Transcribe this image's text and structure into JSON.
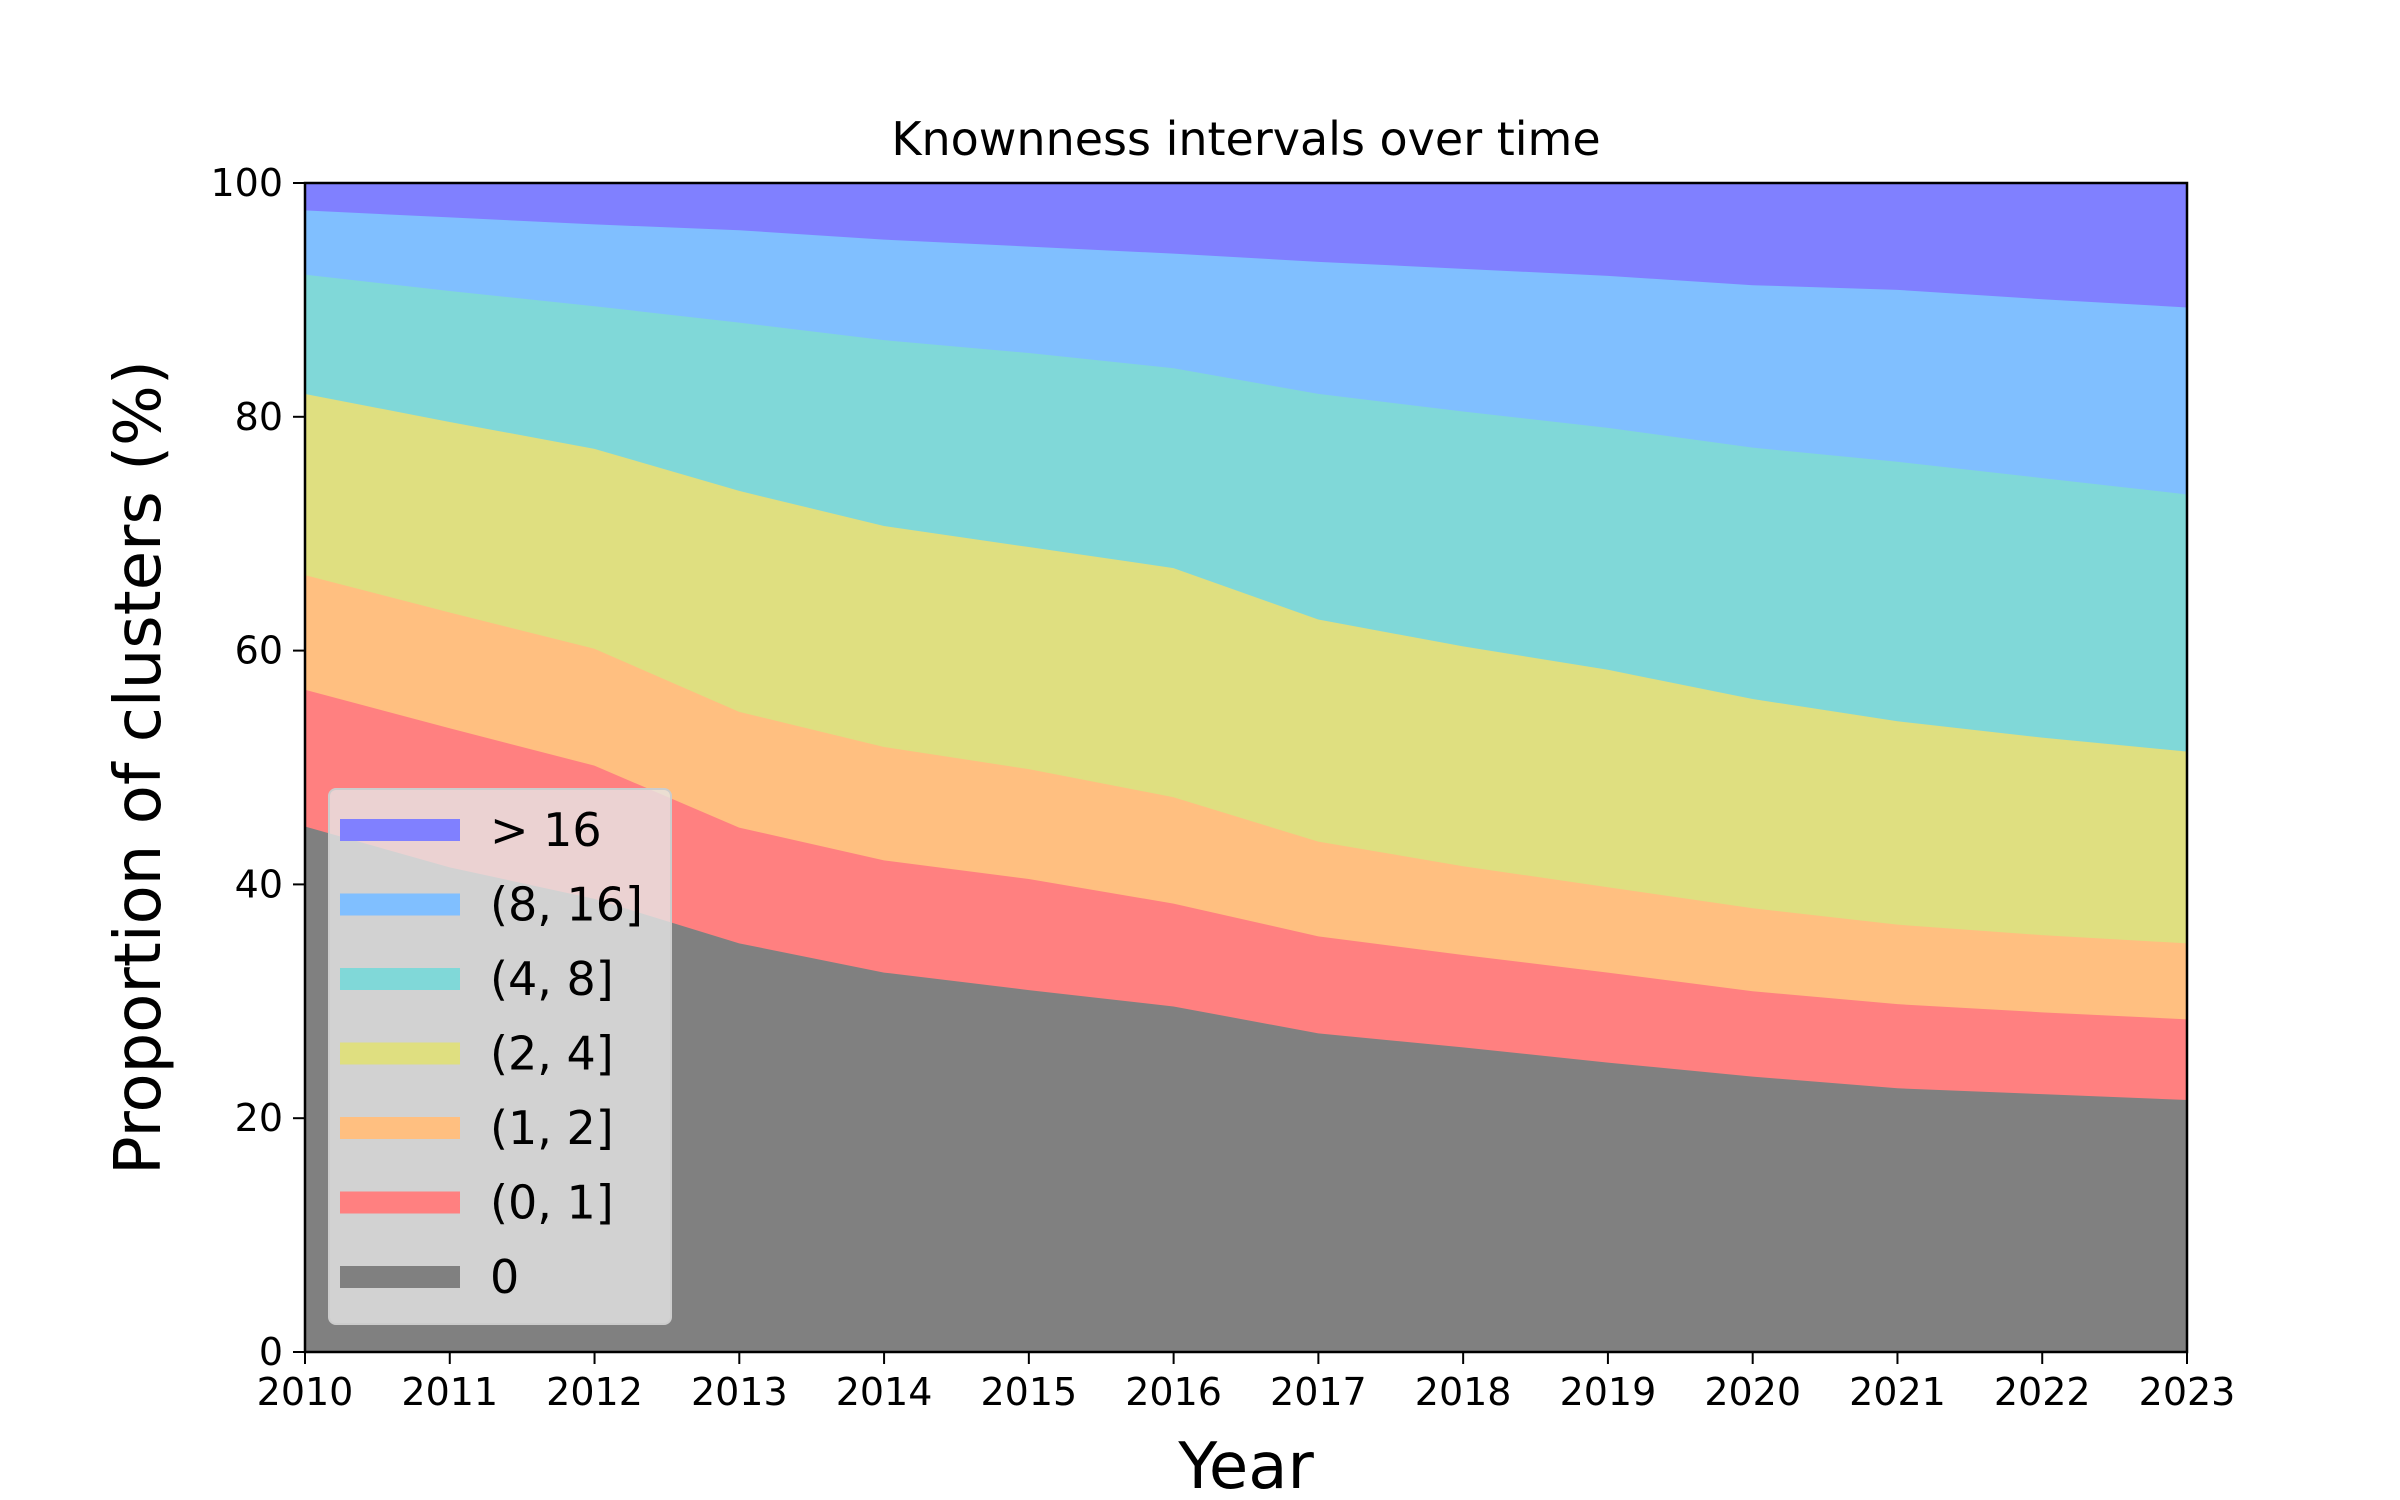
{
  "chart_data": {
    "type": "area",
    "stacked": true,
    "title": "Knownness intervals over time",
    "xlabel": "Year",
    "ylabel": "Proportion of clusters (%)",
    "x": [
      2010,
      2011,
      2012,
      2013,
      2014,
      2015,
      2016,
      2017,
      2018,
      2019,
      2020,
      2021,
      2022,
      2023
    ],
    "xlim": [
      2010,
      2023
    ],
    "ylim": [
      0,
      100
    ],
    "yticks": [
      0,
      20,
      40,
      60,
      80,
      100
    ],
    "grid": false,
    "legend_position": "lower-left",
    "series": [
      {
        "name": "0",
        "color": "#808080",
        "values": [
          45.0,
          41.5,
          38.8,
          35.0,
          32.5,
          31.0,
          29.6,
          27.3,
          26.1,
          24.8,
          23.6,
          22.6,
          22.1,
          21.6
        ]
      },
      {
        "name": "(0, 1]",
        "color": "#ff8080",
        "values": [
          11.7,
          11.9,
          11.4,
          9.9,
          9.6,
          9.5,
          8.8,
          8.3,
          7.9,
          7.7,
          7.3,
          7.2,
          7.0,
          6.9
        ]
      },
      {
        "name": "(1, 2]",
        "color": "#ffbf80",
        "values": [
          9.8,
          9.9,
          10.0,
          9.9,
          9.7,
          9.4,
          9.1,
          8.1,
          7.6,
          7.3,
          7.1,
          6.8,
          6.6,
          6.5
        ]
      },
      {
        "name": "(2, 4]",
        "color": "#dfdf80",
        "values": [
          15.5,
          16.3,
          17.1,
          18.9,
          18.9,
          19.0,
          19.6,
          19.0,
          18.8,
          18.6,
          17.9,
          17.4,
          16.9,
          16.4
        ]
      },
      {
        "name": "(4, 8]",
        "color": "#80d8d8",
        "values": [
          10.2,
          11.2,
          12.2,
          14.4,
          15.9,
          16.6,
          17.1,
          19.3,
          20.1,
          20.7,
          21.5,
          22.2,
          22.2,
          22.0
        ]
      },
      {
        "name": "(8, 16]",
        "color": "#80bfff",
        "values": [
          5.5,
          6.3,
          7.0,
          7.9,
          8.6,
          9.1,
          9.8,
          11.3,
          12.2,
          13.0,
          13.9,
          14.7,
          15.3,
          16.0
        ]
      },
      {
        "name": "> 16",
        "color": "#8080ff",
        "values": [
          2.3,
          2.9,
          3.5,
          4.0,
          4.8,
          5.4,
          6.0,
          6.7,
          7.3,
          7.9,
          8.7,
          9.1,
          9.9,
          10.6
        ]
      }
    ]
  }
}
